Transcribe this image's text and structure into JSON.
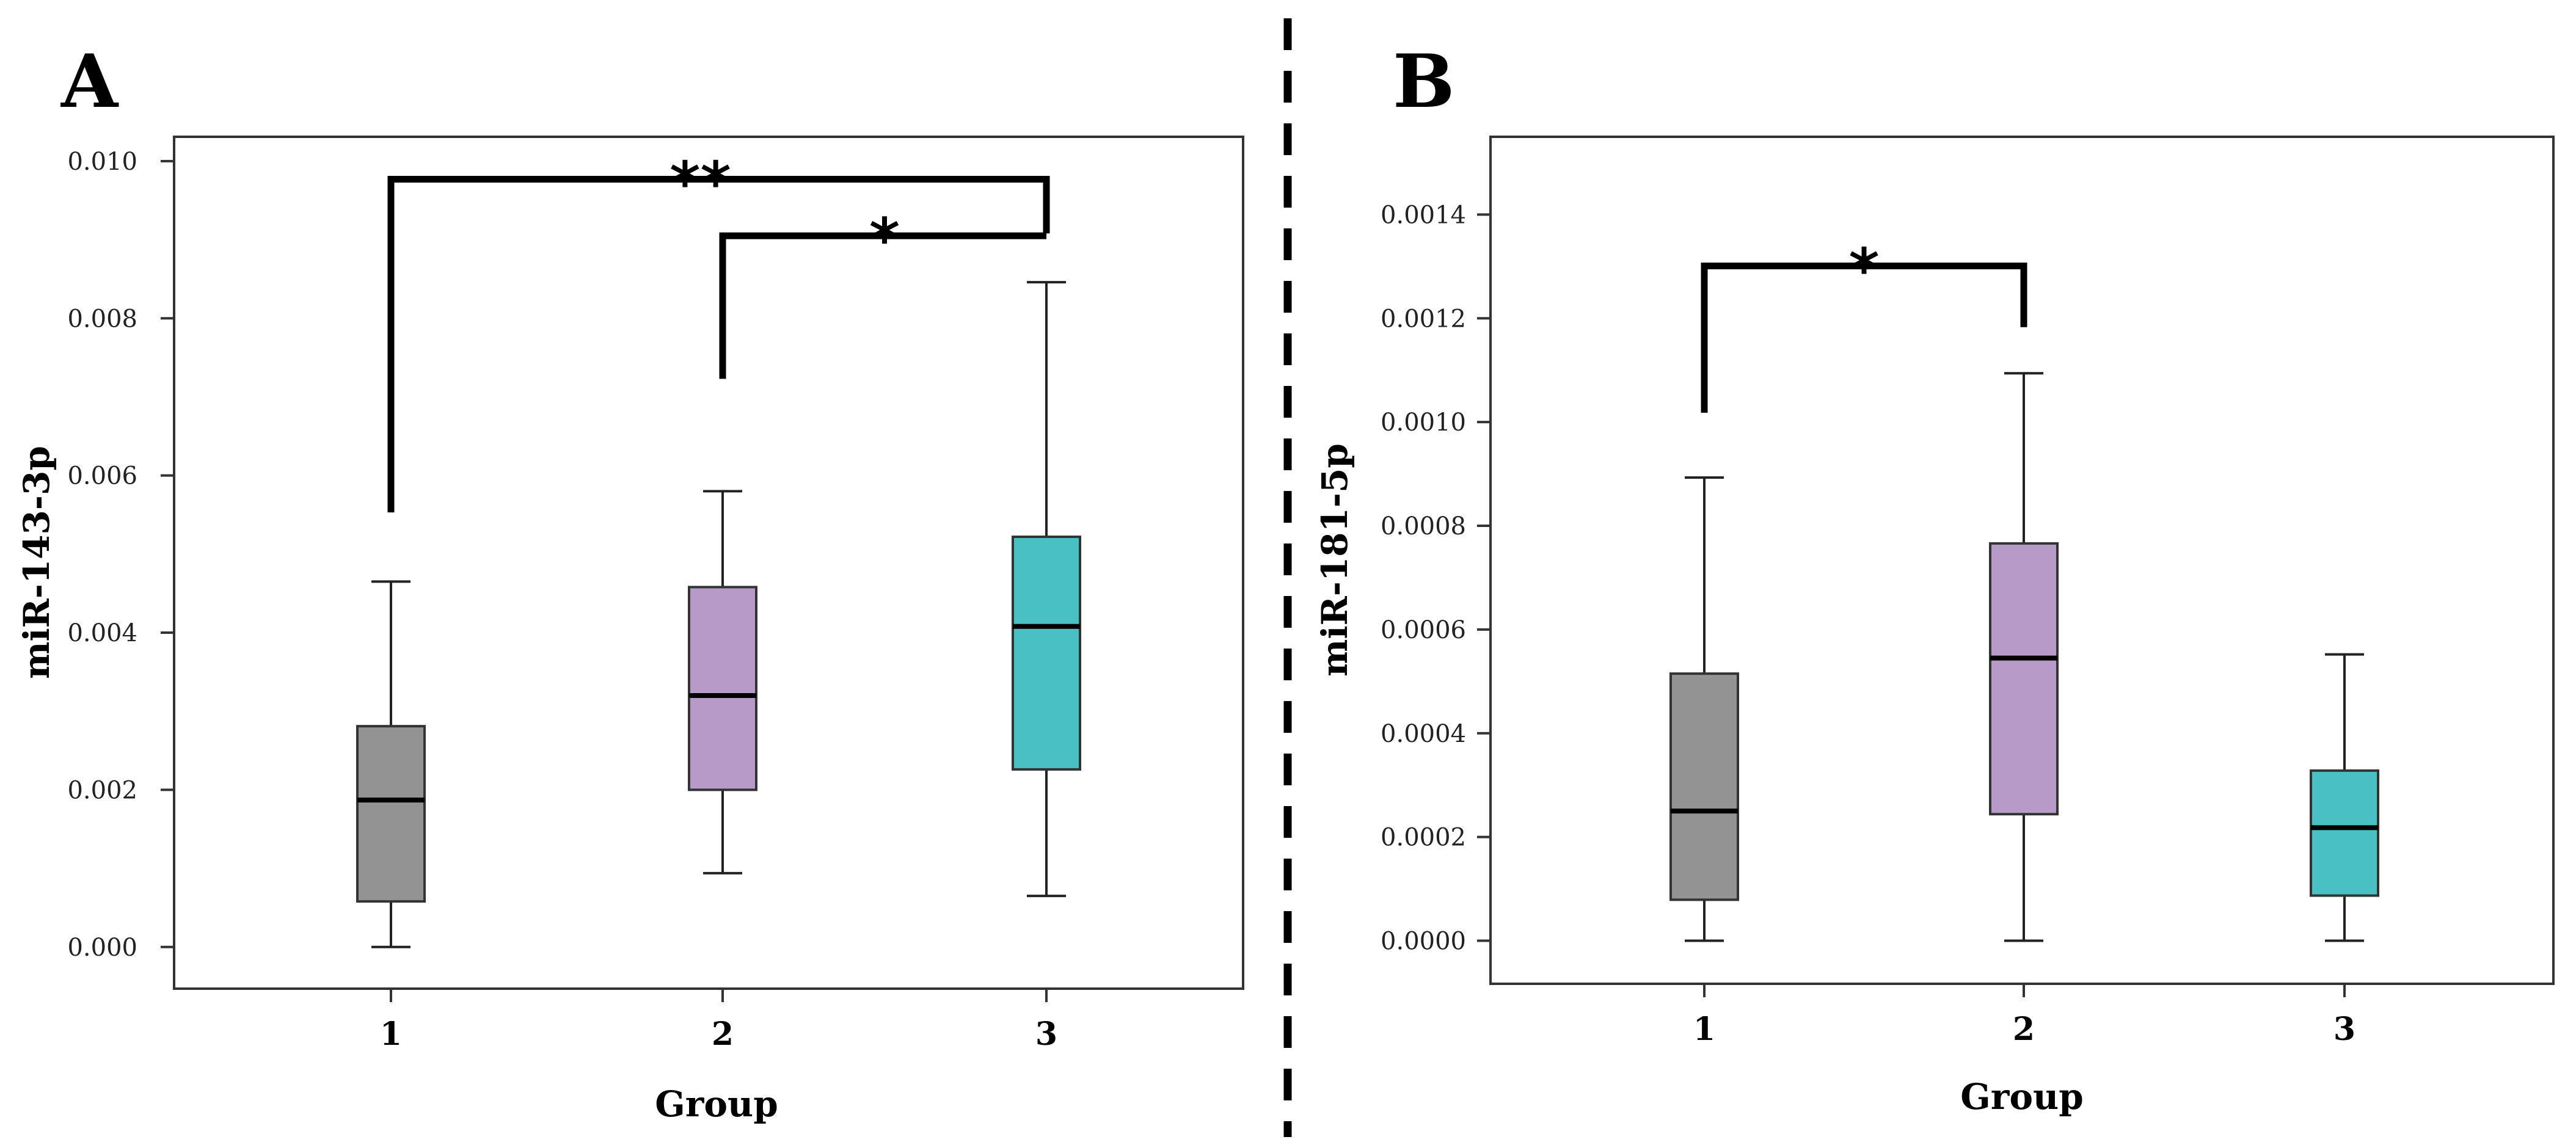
{
  "divider_style": "dashed",
  "chart_data": [
    {
      "type": "boxplot",
      "panel_label": "A",
      "xlabel": "Group",
      "ylabel": "miR-143-3p",
      "ylim": [
        -0.00053,
        0.01031
      ],
      "yticks": [
        {
          "value": 0.0,
          "label": "0.000"
        },
        {
          "value": 0.002,
          "label": "0.002"
        },
        {
          "value": 0.004,
          "label": "0.004"
        },
        {
          "value": 0.006,
          "label": "0.006"
        },
        {
          "value": 0.008,
          "label": "0.008"
        },
        {
          "value": 0.01,
          "label": "0.010"
        }
      ],
      "categories": [
        "1",
        "2",
        "3"
      ],
      "boxes": [
        {
          "category": "1",
          "min": 0.0,
          "q1": 0.00058,
          "median": 0.00187,
          "q3": 0.00281,
          "max": 0.00465,
          "color": "#939393"
        },
        {
          "category": "2",
          "min": 0.00094,
          "q1": 0.002,
          "median": 0.0032,
          "q3": 0.00458,
          "max": 0.0058,
          "color": "#b79ac8"
        },
        {
          "category": "3",
          "min": 0.00065,
          "q1": 0.00226,
          "median": 0.00408,
          "q3": 0.00522,
          "max": 0.00846,
          "color": "#48c0c4"
        }
      ],
      "significance": [
        {
          "from": "1",
          "to": "3",
          "label": "**",
          "bar_y": 0.00977,
          "left_drop_to": 0.00553,
          "right_drop_to": 0.00908
        },
        {
          "from": "2",
          "to": "3",
          "label": "*",
          "bar_y": 0.00905,
          "left_drop_to": 0.00723,
          "right_drop_to": 0.00905
        }
      ]
    },
    {
      "type": "boxplot",
      "panel_label": "B",
      "xlabel": "Group",
      "ylabel": "miR-181-5p",
      "ylim": [
        -8.3e-05,
        0.00155
      ],
      "yticks": [
        {
          "value": 0.0,
          "label": "0.0000"
        },
        {
          "value": 0.0002,
          "label": "0.0002"
        },
        {
          "value": 0.0004,
          "label": "0.0004"
        },
        {
          "value": 0.0006,
          "label": "0.0006"
        },
        {
          "value": 0.0008,
          "label": "0.0008"
        },
        {
          "value": 0.001,
          "label": "0.0010"
        },
        {
          "value": 0.0012,
          "label": "0.0012"
        },
        {
          "value": 0.0014,
          "label": "0.0014"
        }
      ],
      "categories": [
        "1",
        "2",
        "3"
      ],
      "boxes": [
        {
          "category": "1",
          "min": 0.0,
          "q1": 7.9e-05,
          "median": 0.00025,
          "q3": 0.000515,
          "max": 0.000893,
          "color": "#939393"
        },
        {
          "category": "2",
          "min": 0.0,
          "q1": 0.000244,
          "median": 0.000545,
          "q3": 0.000766,
          "max": 0.001094,
          "color": "#b79ac8"
        },
        {
          "category": "3",
          "min": 0.0,
          "q1": 8.7e-05,
          "median": 0.000218,
          "q3": 0.000328,
          "max": 0.000552,
          "color": "#48c0c4"
        }
      ],
      "significance": [
        {
          "from": "1",
          "to": "2",
          "label": "*",
          "bar_y": 0.001301,
          "left_drop_to": 0.001018,
          "right_drop_to": 0.001183
        }
      ]
    }
  ]
}
